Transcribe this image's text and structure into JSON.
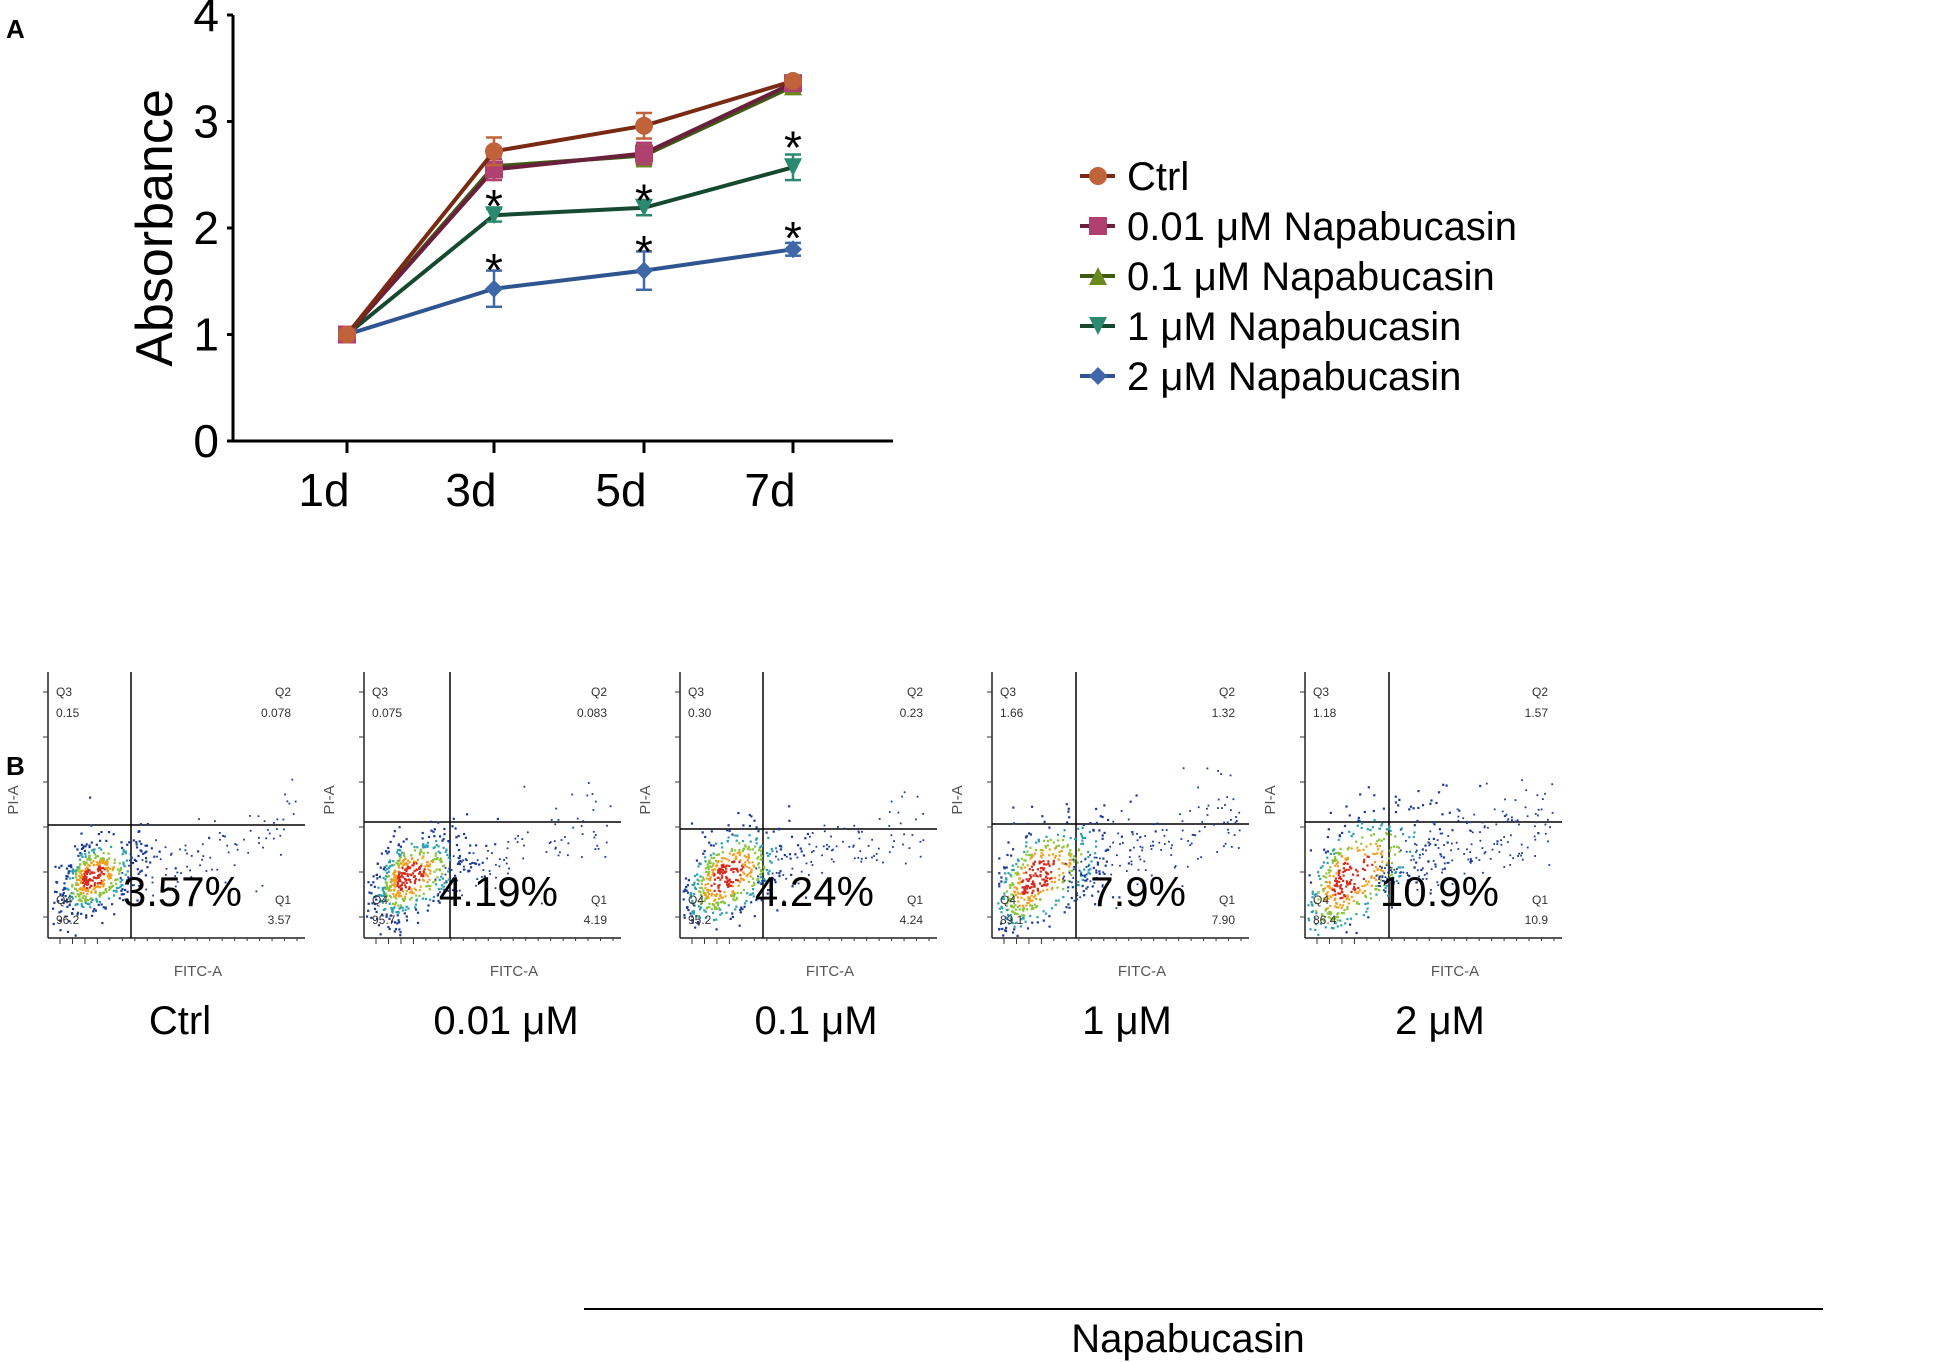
{
  "chart_data": [
    {
      "panel": "A",
      "type": "line",
      "xlabel": "",
      "ylabel": "Absorbance",
      "categories": [
        "1d",
        "3d",
        "5d",
        "7d"
      ],
      "yticks": [
        "0",
        "1",
        "2",
        "3",
        "4"
      ],
      "ylim": [
        0,
        4
      ],
      "series": [
        {
          "name": "Ctrl",
          "color": "#c0623a",
          "line_color": "#7a2a12",
          "marker": "circle",
          "values": [
            1.0,
            2.72,
            2.96,
            3.38
          ],
          "errors": [
            0.04,
            0.13,
            0.12,
            0.04
          ]
        },
        {
          "name": "0.01 μM Napabucasin",
          "color": "#b04070",
          "line_color": "#6a1f3c",
          "marker": "square",
          "values": [
            1.0,
            2.55,
            2.7,
            3.36
          ],
          "errors": [
            0.04,
            0.1,
            0.1,
            0.05
          ]
        },
        {
          "name": "0.1 μM Napabucasin",
          "color": "#6a8a1f",
          "line_color": "#3f5a14",
          "marker": "triangle-up",
          "values": [
            1.0,
            2.58,
            2.68,
            3.33
          ],
          "errors": [
            0.04,
            0.1,
            0.1,
            0.05
          ]
        },
        {
          "name": "1 μM Napabucasin",
          "color": "#2a8a70",
          "line_color": "#164a30",
          "marker": "triangle-down",
          "values": [
            1.0,
            2.12,
            2.19,
            2.57
          ],
          "errors": [
            0.04,
            0.06,
            0.07,
            0.12
          ]
        },
        {
          "name": "2 μM Napabucasin",
          "color": "#3f68a8",
          "line_color": "#2e5590",
          "marker": "diamond",
          "values": [
            1.0,
            1.43,
            1.6,
            1.8
          ],
          "errors": [
            0.04,
            0.17,
            0.18,
            0.06
          ]
        }
      ],
      "significance": [
        {
          "label": "*",
          "category": "3d",
          "y": 2.3
        },
        {
          "label": "*",
          "category": "3d",
          "y": 1.7
        },
        {
          "label": "*",
          "category": "5d",
          "y": 2.35
        },
        {
          "label": "*",
          "category": "5d",
          "y": 1.87
        },
        {
          "label": "*",
          "category": "7d",
          "y": 2.85
        },
        {
          "label": "*",
          "category": "7d",
          "y": 2.0
        }
      ]
    },
    {
      "panel": "B",
      "type": "scatter",
      "xlabel": "FITC-A",
      "ylabel": "PI-A",
      "panels": [
        {
          "caption": "Ctrl",
          "percent": "3.57%",
          "q1_label": "Q1",
          "q1": "3.57",
          "q2_label": "Q2",
          "q2": "0.078",
          "q3_label": "Q3",
          "q3": "0.15",
          "q4_label": "Q4",
          "q4": "96.2"
        },
        {
          "caption": "0.01 μM",
          "percent": "4.19%",
          "q1_label": "Q1",
          "q1": "4.19",
          "q2_label": "Q2",
          "q2": "0.083",
          "q3_label": "Q3",
          "q3": "0.075",
          "q4_label": "Q4",
          "q4": "95.7"
        },
        {
          "caption": "0.1 μM",
          "percent": "4.24%",
          "q1_label": "Q1",
          "q1": "4.24",
          "q2_label": "Q2",
          "q2": "0.23",
          "q3_label": "Q3",
          "q3": "0.30",
          "q4_label": "Q4",
          "q4": "95.2"
        },
        {
          "caption": "1 μM",
          "percent": "7.9%",
          "q1_label": "Q1",
          "q1": "7.90",
          "q2_label": "Q2",
          "q2": "1.32",
          "q3_label": "Q3",
          "q3": "1.66",
          "q4_label": "Q4",
          "q4": "89.1"
        },
        {
          "caption": "2 μM",
          "percent": "10.9%",
          "q1_label": "Q1",
          "q1": "10.9",
          "q2_label": "Q2",
          "q2": "1.57",
          "q3_label": "Q3",
          "q3": "1.18",
          "q4_label": "Q4",
          "q4": "86.4"
        }
      ],
      "group_label": "Napabucasin"
    }
  ],
  "panel_labels": {
    "a": "A",
    "b": "B"
  }
}
